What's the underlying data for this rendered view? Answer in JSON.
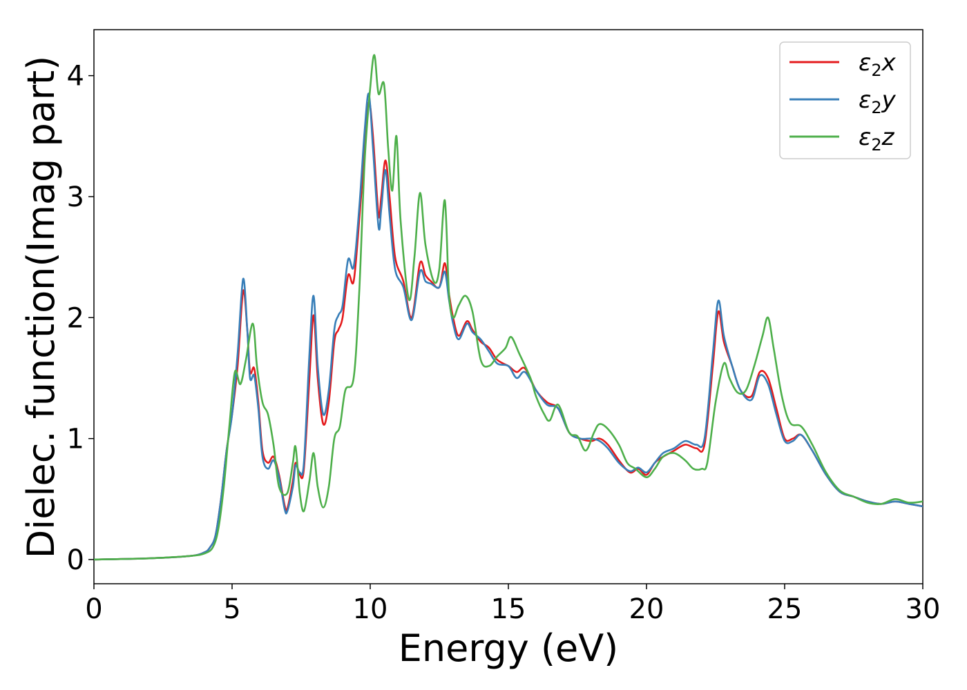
{
  "chart_data": {
    "type": "line",
    "title": "",
    "xlabel": "Energy (eV)",
    "ylabel": "Dielec. function(Imag part)",
    "xlim": [
      0,
      30
    ],
    "ylim": [
      -0.2,
      4.38
    ],
    "xticks": [
      0,
      5,
      10,
      15,
      20,
      25,
      30
    ],
    "yticks": [
      0,
      1,
      2,
      3,
      4
    ],
    "grid": false,
    "legend_position": "top-right",
    "series": [
      {
        "name": "ε₂x",
        "legend_base": "ε",
        "legend_sub": "2",
        "legend_var": "x",
        "color": "#e41a1c",
        "points": [
          [
            0,
            0
          ],
          [
            2,
            0.01
          ],
          [
            3.5,
            0.03
          ],
          [
            4,
            0.06
          ],
          [
            4.2,
            0.1
          ],
          [
            4.4,
            0.2
          ],
          [
            4.6,
            0.5
          ],
          [
            4.8,
            0.9
          ],
          [
            5.0,
            1.2
          ],
          [
            5.2,
            1.6
          ],
          [
            5.4,
            2.22
          ],
          [
            5.55,
            1.9
          ],
          [
            5.65,
            1.55
          ],
          [
            5.8,
            1.58
          ],
          [
            5.95,
            1.3
          ],
          [
            6.1,
            0.9
          ],
          [
            6.3,
            0.8
          ],
          [
            6.5,
            0.85
          ],
          [
            6.7,
            0.7
          ],
          [
            6.9,
            0.45
          ],
          [
            7.0,
            0.42
          ],
          [
            7.2,
            0.65
          ],
          [
            7.3,
            0.8
          ],
          [
            7.45,
            0.7
          ],
          [
            7.6,
            0.75
          ],
          [
            7.8,
            1.5
          ],
          [
            7.95,
            2.02
          ],
          [
            8.1,
            1.5
          ],
          [
            8.3,
            1.12
          ],
          [
            8.5,
            1.3
          ],
          [
            8.7,
            1.8
          ],
          [
            8.85,
            1.9
          ],
          [
            9.0,
            2.0
          ],
          [
            9.2,
            2.35
          ],
          [
            9.4,
            2.3
          ],
          [
            9.6,
            2.8
          ],
          [
            9.8,
            3.4
          ],
          [
            9.95,
            3.78
          ],
          [
            10.1,
            3.5
          ],
          [
            10.3,
            2.85
          ],
          [
            10.4,
            3.0
          ],
          [
            10.55,
            3.3
          ],
          [
            10.7,
            3.0
          ],
          [
            10.9,
            2.5
          ],
          [
            11.2,
            2.3
          ],
          [
            11.5,
            2.0
          ],
          [
            11.8,
            2.45
          ],
          [
            12.0,
            2.35
          ],
          [
            12.2,
            2.3
          ],
          [
            12.5,
            2.25
          ],
          [
            12.7,
            2.45
          ],
          [
            12.85,
            2.2
          ],
          [
            13.0,
            2.0
          ],
          [
            13.2,
            1.85
          ],
          [
            13.5,
            1.97
          ],
          [
            13.7,
            1.9
          ],
          [
            14.0,
            1.8
          ],
          [
            14.3,
            1.75
          ],
          [
            14.6,
            1.65
          ],
          [
            15.0,
            1.6
          ],
          [
            15.3,
            1.55
          ],
          [
            15.6,
            1.58
          ],
          [
            16.0,
            1.4
          ],
          [
            16.4,
            1.3
          ],
          [
            16.8,
            1.25
          ],
          [
            17.2,
            1.05
          ],
          [
            17.6,
            1.0
          ],
          [
            18.0,
            0.98
          ],
          [
            18.3,
            1.0
          ],
          [
            18.6,
            0.95
          ],
          [
            19.0,
            0.82
          ],
          [
            19.4,
            0.72
          ],
          [
            19.7,
            0.75
          ],
          [
            20.0,
            0.7
          ],
          [
            20.3,
            0.8
          ],
          [
            20.6,
            0.85
          ],
          [
            21.0,
            0.9
          ],
          [
            21.4,
            0.95
          ],
          [
            21.8,
            0.92
          ],
          [
            22.1,
            0.95
          ],
          [
            22.4,
            1.6
          ],
          [
            22.6,
            2.05
          ],
          [
            22.8,
            1.8
          ],
          [
            23.1,
            1.6
          ],
          [
            23.4,
            1.4
          ],
          [
            23.8,
            1.35
          ],
          [
            24.1,
            1.55
          ],
          [
            24.4,
            1.5
          ],
          [
            24.7,
            1.25
          ],
          [
            25.0,
            1.0
          ],
          [
            25.3,
            1.0
          ],
          [
            25.6,
            1.03
          ],
          [
            26.0,
            0.9
          ],
          [
            26.5,
            0.7
          ],
          [
            27.0,
            0.56
          ],
          [
            27.5,
            0.52
          ],
          [
            28.0,
            0.48
          ],
          [
            28.5,
            0.46
          ],
          [
            29.0,
            0.48
          ],
          [
            29.5,
            0.46
          ],
          [
            30.0,
            0.44
          ]
        ]
      },
      {
        "name": "ε₂y",
        "legend_base": "ε",
        "legend_sub": "2",
        "legend_var": "y",
        "color": "#377eb8",
        "points": [
          [
            0,
            0
          ],
          [
            2,
            0.01
          ],
          [
            3.5,
            0.03
          ],
          [
            4,
            0.06
          ],
          [
            4.2,
            0.1
          ],
          [
            4.4,
            0.2
          ],
          [
            4.6,
            0.5
          ],
          [
            4.8,
            0.9
          ],
          [
            5.0,
            1.2
          ],
          [
            5.2,
            1.7
          ],
          [
            5.4,
            2.32
          ],
          [
            5.55,
            1.9
          ],
          [
            5.65,
            1.5
          ],
          [
            5.8,
            1.52
          ],
          [
            5.95,
            1.25
          ],
          [
            6.1,
            0.85
          ],
          [
            6.3,
            0.75
          ],
          [
            6.5,
            0.82
          ],
          [
            6.7,
            0.68
          ],
          [
            6.9,
            0.42
          ],
          [
            7.0,
            0.4
          ],
          [
            7.2,
            0.6
          ],
          [
            7.3,
            0.78
          ],
          [
            7.45,
            0.72
          ],
          [
            7.6,
            0.8
          ],
          [
            7.8,
            1.7
          ],
          [
            7.95,
            2.18
          ],
          [
            8.1,
            1.6
          ],
          [
            8.3,
            1.2
          ],
          [
            8.5,
            1.4
          ],
          [
            8.7,
            1.9
          ],
          [
            8.85,
            2.02
          ],
          [
            9.0,
            2.1
          ],
          [
            9.2,
            2.48
          ],
          [
            9.4,
            2.42
          ],
          [
            9.6,
            2.9
          ],
          [
            9.8,
            3.55
          ],
          [
            9.95,
            3.85
          ],
          [
            10.1,
            3.4
          ],
          [
            10.3,
            2.75
          ],
          [
            10.4,
            2.9
          ],
          [
            10.55,
            3.22
          ],
          [
            10.7,
            2.85
          ],
          [
            10.9,
            2.4
          ],
          [
            11.2,
            2.25
          ],
          [
            11.5,
            1.98
          ],
          [
            11.8,
            2.38
          ],
          [
            12.0,
            2.3
          ],
          [
            12.2,
            2.28
          ],
          [
            12.5,
            2.25
          ],
          [
            12.7,
            2.38
          ],
          [
            12.85,
            2.15
          ],
          [
            13.0,
            1.95
          ],
          [
            13.2,
            1.82
          ],
          [
            13.5,
            1.95
          ],
          [
            13.7,
            1.88
          ],
          [
            14.0,
            1.82
          ],
          [
            14.3,
            1.72
          ],
          [
            14.6,
            1.62
          ],
          [
            15.0,
            1.6
          ],
          [
            15.3,
            1.5
          ],
          [
            15.6,
            1.55
          ],
          [
            16.0,
            1.4
          ],
          [
            16.4,
            1.28
          ],
          [
            16.8,
            1.25
          ],
          [
            17.2,
            1.05
          ],
          [
            17.6,
            1.0
          ],
          [
            18.0,
            1.0
          ],
          [
            18.3,
            0.98
          ],
          [
            18.6,
            0.92
          ],
          [
            19.0,
            0.8
          ],
          [
            19.4,
            0.73
          ],
          [
            19.7,
            0.76
          ],
          [
            20.0,
            0.72
          ],
          [
            20.3,
            0.8
          ],
          [
            20.6,
            0.88
          ],
          [
            21.0,
            0.92
          ],
          [
            21.4,
            0.98
          ],
          [
            21.8,
            0.95
          ],
          [
            22.1,
            1.0
          ],
          [
            22.4,
            1.7
          ],
          [
            22.6,
            2.14
          ],
          [
            22.8,
            1.85
          ],
          [
            23.1,
            1.6
          ],
          [
            23.4,
            1.4
          ],
          [
            23.8,
            1.32
          ],
          [
            24.1,
            1.52
          ],
          [
            24.4,
            1.45
          ],
          [
            24.7,
            1.2
          ],
          [
            25.0,
            0.98
          ],
          [
            25.3,
            0.98
          ],
          [
            25.6,
            1.03
          ],
          [
            26.0,
            0.9
          ],
          [
            26.5,
            0.7
          ],
          [
            27.0,
            0.56
          ],
          [
            27.5,
            0.52
          ],
          [
            28.0,
            0.48
          ],
          [
            28.5,
            0.46
          ],
          [
            29.0,
            0.48
          ],
          [
            29.5,
            0.46
          ],
          [
            30.0,
            0.44
          ]
        ]
      },
      {
        "name": "ε₂z",
        "legend_base": "ε",
        "legend_sub": "2",
        "legend_var": "z",
        "color": "#4daf4a",
        "points": [
          [
            0,
            0
          ],
          [
            2,
            0.01
          ],
          [
            3.5,
            0.03
          ],
          [
            4,
            0.05
          ],
          [
            4.3,
            0.1
          ],
          [
            4.5,
            0.25
          ],
          [
            4.7,
            0.6
          ],
          [
            4.9,
            1.1
          ],
          [
            5.1,
            1.55
          ],
          [
            5.3,
            1.45
          ],
          [
            5.5,
            1.65
          ],
          [
            5.75,
            1.95
          ],
          [
            5.9,
            1.6
          ],
          [
            6.1,
            1.3
          ],
          [
            6.3,
            1.2
          ],
          [
            6.5,
            0.95
          ],
          [
            6.7,
            0.6
          ],
          [
            7.0,
            0.55
          ],
          [
            7.2,
            0.8
          ],
          [
            7.3,
            0.93
          ],
          [
            7.45,
            0.55
          ],
          [
            7.6,
            0.4
          ],
          [
            7.8,
            0.65
          ],
          [
            7.95,
            0.88
          ],
          [
            8.1,
            0.6
          ],
          [
            8.3,
            0.43
          ],
          [
            8.5,
            0.6
          ],
          [
            8.7,
            1.0
          ],
          [
            8.9,
            1.1
          ],
          [
            9.1,
            1.4
          ],
          [
            9.4,
            1.5
          ],
          [
            9.6,
            2.2
          ],
          [
            9.8,
            3.3
          ],
          [
            10.0,
            3.9
          ],
          [
            10.15,
            4.17
          ],
          [
            10.3,
            3.85
          ],
          [
            10.5,
            3.93
          ],
          [
            10.65,
            3.4
          ],
          [
            10.8,
            3.05
          ],
          [
            10.95,
            3.5
          ],
          [
            11.1,
            2.8
          ],
          [
            11.4,
            2.15
          ],
          [
            11.6,
            2.5
          ],
          [
            11.8,
            3.03
          ],
          [
            12.0,
            2.6
          ],
          [
            12.3,
            2.3
          ],
          [
            12.5,
            2.4
          ],
          [
            12.7,
            2.97
          ],
          [
            12.85,
            2.2
          ],
          [
            13.0,
            2.0
          ],
          [
            13.2,
            2.1
          ],
          [
            13.45,
            2.18
          ],
          [
            13.7,
            2.05
          ],
          [
            14.0,
            1.65
          ],
          [
            14.3,
            1.6
          ],
          [
            14.6,
            1.68
          ],
          [
            14.9,
            1.75
          ],
          [
            15.1,
            1.84
          ],
          [
            15.4,
            1.7
          ],
          [
            15.8,
            1.5
          ],
          [
            16.0,
            1.35
          ],
          [
            16.3,
            1.2
          ],
          [
            16.5,
            1.15
          ],
          [
            16.8,
            1.28
          ],
          [
            17.2,
            1.05
          ],
          [
            17.5,
            1.02
          ],
          [
            17.8,
            0.9
          ],
          [
            18.1,
            1.05
          ],
          [
            18.3,
            1.12
          ],
          [
            18.6,
            1.08
          ],
          [
            19.0,
            0.95
          ],
          [
            19.3,
            0.8
          ],
          [
            19.6,
            0.75
          ],
          [
            20.0,
            0.68
          ],
          [
            20.3,
            0.75
          ],
          [
            20.6,
            0.85
          ],
          [
            21.0,
            0.88
          ],
          [
            21.4,
            0.82
          ],
          [
            21.7,
            0.75
          ],
          [
            22.0,
            0.75
          ],
          [
            22.2,
            0.8
          ],
          [
            22.5,
            1.3
          ],
          [
            22.8,
            1.62
          ],
          [
            23.0,
            1.5
          ],
          [
            23.3,
            1.38
          ],
          [
            23.6,
            1.4
          ],
          [
            23.9,
            1.6
          ],
          [
            24.2,
            1.85
          ],
          [
            24.4,
            2.0
          ],
          [
            24.6,
            1.75
          ],
          [
            24.9,
            1.35
          ],
          [
            25.2,
            1.13
          ],
          [
            25.6,
            1.1
          ],
          [
            26.0,
            0.95
          ],
          [
            26.5,
            0.72
          ],
          [
            27.0,
            0.57
          ],
          [
            27.5,
            0.52
          ],
          [
            28.0,
            0.47
          ],
          [
            28.5,
            0.46
          ],
          [
            29.0,
            0.5
          ],
          [
            29.5,
            0.47
          ],
          [
            30.0,
            0.48
          ]
        ]
      }
    ]
  }
}
